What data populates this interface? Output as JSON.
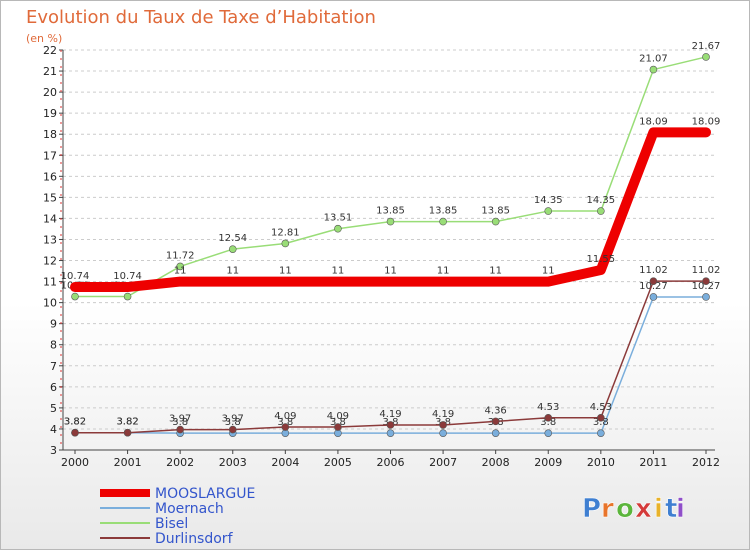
{
  "chart_data": {
    "type": "line",
    "title": "Evolution du Taux de Taxe d’Habitation",
    "subtitle": "(en %)",
    "x": [
      "2000",
      "2001",
      "2002",
      "2003",
      "2004",
      "2005",
      "2006",
      "2007",
      "2008",
      "2009",
      "2010",
      "2011",
      "2012"
    ],
    "ylim": [
      3,
      22
    ],
    "yticks": [
      3,
      4,
      5,
      6,
      7,
      8,
      9,
      10,
      11,
      12,
      13,
      14,
      15,
      16,
      17,
      18,
      19,
      20,
      21,
      22
    ],
    "grid": "horizontal",
    "legend_position": "bottom-left",
    "series": [
      {
        "name": "Bisel",
        "color": "#99dd77",
        "values": [
          10.29,
          10.29,
          11.72,
          12.54,
          12.81,
          13.51,
          13.85,
          13.85,
          13.85,
          14.35,
          14.35,
          21.07,
          21.67
        ],
        "labels": [
          "10.29",
          "10.29",
          "11.72",
          "12.54",
          "12.81",
          "13.51",
          "13.85",
          "13.85",
          "13.85",
          "14.35",
          "14.35",
          "21.07",
          "21.67"
        ]
      },
      {
        "name": "Moernach",
        "color": "#7aaedc",
        "values": [
          3.82,
          3.82,
          3.8,
          3.8,
          3.8,
          3.8,
          3.8,
          3.8,
          3.8,
          3.8,
          3.8,
          10.27,
          10.27
        ],
        "labels": [
          "3.82",
          "3.82",
          "3.8",
          "3.8",
          "3.8",
          "3.8",
          "3.8",
          "3.8",
          "3.8",
          "3.8",
          "3.8",
          "10.27",
          "10.27"
        ]
      },
      {
        "name": "Durlinsdorf",
        "color": "#8b3a3a",
        "values": [
          3.82,
          3.82,
          3.97,
          3.97,
          4.09,
          4.09,
          4.19,
          4.19,
          4.36,
          4.53,
          4.53,
          11.02,
          11.02
        ],
        "labels": [
          "3.82",
          "3.82",
          "3.97",
          "3.97",
          "4.09",
          "4.09",
          "4.19",
          "4.19",
          "4.36",
          "4.53",
          "4.53",
          "11.02",
          "11.02"
        ]
      },
      {
        "name": "MOOSLARGUE",
        "color": "#ee0000",
        "values": [
          10.74,
          10.74,
          11,
          11,
          11,
          11,
          11,
          11,
          11,
          11,
          11.55,
          18.09,
          18.09
        ],
        "labels": [
          "10.74",
          "10.74",
          "11",
          "11",
          "11",
          "11",
          "11",
          "11",
          "11",
          "11",
          "11.55",
          "18.09",
          "18.09"
        ]
      }
    ],
    "legend": [
      "MOOSLARGUE",
      "Moernach",
      "Bisel",
      "Durlinsdorf"
    ]
  },
  "logo": {
    "letters": [
      "P",
      "r",
      "o",
      "x",
      "i",
      "t",
      "i"
    ]
  }
}
